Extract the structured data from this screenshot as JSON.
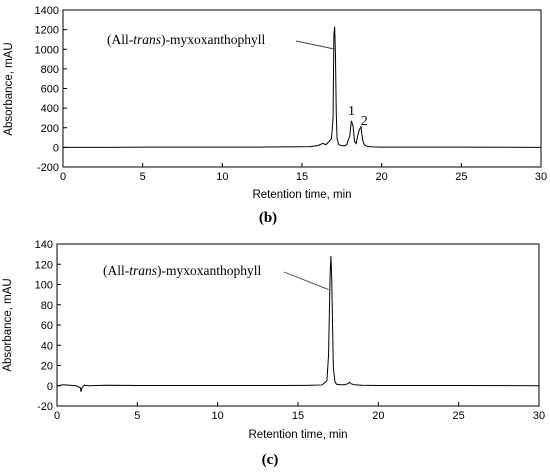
{
  "chart_data": [
    {
      "type": "line",
      "panel_label": "(b)",
      "xlabel": "Retention time, min",
      "ylabel": "Absorbance, mAU",
      "xlim": [
        0,
        30
      ],
      "ylim": [
        -200,
        1400
      ],
      "xticks": [
        "0",
        "5",
        "10",
        "15",
        "20",
        "25",
        "30"
      ],
      "yticks": [
        "-200",
        "0",
        "200",
        "400",
        "600",
        "800",
        "1000",
        "1200",
        "1400"
      ],
      "grid": false,
      "annotation": {
        "prefix": "(All-",
        "italic": "trans",
        "suffix": ")-myxoxanthophyll",
        "target_x": 17.1,
        "target_y": 1000
      },
      "peak_labels": [
        {
          "text": "1",
          "x": 18.2,
          "y": 330
        },
        {
          "text": "2",
          "x": 19.0,
          "y": 230
        }
      ],
      "series": [
        {
          "x": [
            0,
            2,
            5,
            8,
            10,
            12,
            14,
            15.5,
            16.0,
            16.3,
            16.5,
            16.7,
            16.85,
            16.95,
            17.0,
            17.05,
            17.1,
            17.15,
            17.2,
            17.3,
            17.4,
            17.6,
            17.8,
            18.0,
            18.1,
            18.2,
            18.3,
            18.4,
            18.5,
            18.6,
            18.7,
            18.8,
            18.9,
            19.0,
            19.2,
            19.5,
            20,
            22,
            25,
            28,
            30
          ],
          "y": [
            0,
            0,
            2,
            3,
            2,
            3,
            5,
            8,
            18,
            40,
            28,
            60,
            90,
            300,
            1150,
            1230,
            950,
            350,
            90,
            30,
            20,
            15,
            25,
            120,
            270,
            220,
            60,
            40,
            120,
            180,
            210,
            80,
            30,
            15,
            8,
            5,
            3,
            2,
            2,
            1,
            0
          ]
        }
      ]
    },
    {
      "type": "line",
      "panel_label": "(c)",
      "xlabel": "Retention time, min",
      "ylabel": "Absorbance, mAU",
      "xlim": [
        0,
        30
      ],
      "ylim": [
        -20,
        140
      ],
      "xticks": [
        "0",
        "5",
        "10",
        "15",
        "20",
        "25",
        "30"
      ],
      "yticks": [
        "-20",
        "0",
        "20",
        "40",
        "60",
        "80",
        "100",
        "120",
        "140"
      ],
      "grid": false,
      "annotation": {
        "prefix": "(All-",
        "italic": "trans",
        "suffix": ")-myxoxanthophyll",
        "target_x": 16.9,
        "target_y": 95
      },
      "series": [
        {
          "x": [
            0,
            0.4,
            0.8,
            1.2,
            1.45,
            1.5,
            1.55,
            1.7,
            2.0,
            3,
            5,
            8,
            10,
            12,
            14,
            15.5,
            16.5,
            16.8,
            16.9,
            17.0,
            17.05,
            17.1,
            17.15,
            17.2,
            17.3,
            17.4,
            17.6,
            17.9,
            18.1,
            18.2,
            18.3,
            18.5,
            19,
            20,
            22,
            25,
            28,
            30
          ],
          "y": [
            0,
            1,
            0.5,
            0,
            -2,
            -6,
            -2,
            0.5,
            0,
            0.5,
            0.3,
            0.3,
            0.3,
            0.3,
            0.3,
            0.4,
            0.8,
            5,
            30,
            110,
            128,
            105,
            60,
            18,
            4,
            1.5,
            1,
            1,
            2,
            3.5,
            2,
            1,
            0.5,
            0.3,
            0.3,
            0.2,
            0.1,
            0
          ]
        }
      ]
    }
  ]
}
